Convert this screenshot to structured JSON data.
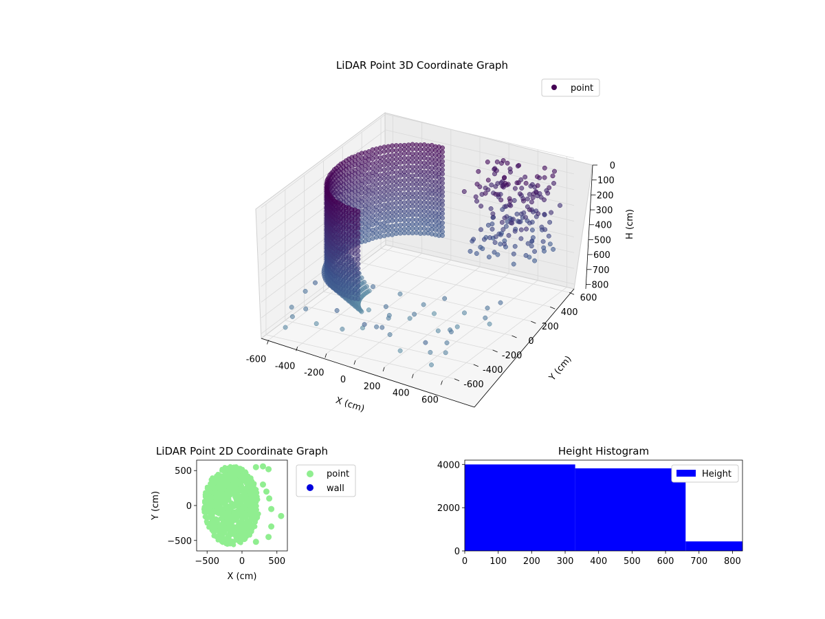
{
  "chart_data": [
    {
      "type": "scatter",
      "projection": "3d",
      "title": "LiDAR Point 3D Coordinate Graph",
      "xlabel": "X (cm)",
      "ylabel": "Y (cm)",
      "zlabel": "H (cm)",
      "xlim": [
        -650,
        650
      ],
      "ylim": [
        -650,
        650
      ],
      "zlim": [
        0,
        830
      ],
      "z_inverted": true,
      "x_ticks": [
        -600,
        -400,
        -200,
        0,
        200,
        400,
        600
      ],
      "y_ticks": [
        -600,
        -400,
        -200,
        0,
        200,
        400,
        600
      ],
      "z_ticks": [
        0,
        100,
        200,
        300,
        400,
        500,
        600,
        700,
        800
      ],
      "colormap": "viridis-like",
      "legend": {
        "placement": "top-right",
        "entries": [
          {
            "name": "point",
            "color": "#440154"
          }
        ]
      },
      "grid": true,
      "series": [
        {
          "name": "point",
          "description_of_shape": "dense cylindrical wall points on the left half plus scattered objects toward positive X",
          "points_sampled": "approximate"
        }
      ]
    },
    {
      "type": "scatter",
      "title": "LiDAR Point 2D Coordinate Graph",
      "xlabel": "X (cm)",
      "ylabel": "Y (cm)",
      "xlim": [
        -650,
        650
      ],
      "ylim": [
        -650,
        650
      ],
      "x_ticks": [
        -500,
        0,
        500
      ],
      "y_ticks": [
        -500,
        0,
        500
      ],
      "legend": {
        "placement": "right-outside",
        "entries": [
          {
            "name": "point",
            "color": "#90ee90"
          },
          {
            "name": "wall",
            "color": "#0000dd"
          }
        ]
      },
      "series": [
        {
          "name": "point",
          "color": "#90ee90",
          "shape": "filled disc, radius ~420 centered near (-150, 0), with bumps up to x≈560"
        },
        {
          "name": "wall",
          "color": "#0000dd",
          "values": []
        }
      ]
    },
    {
      "type": "bar",
      "subtype": "histogram",
      "title": "Height Histogram",
      "xlim": [
        0,
        830
      ],
      "ylim": [
        0,
        4200
      ],
      "x_ticks": [
        0,
        100,
        200,
        300,
        400,
        500,
        600,
        700,
        800
      ],
      "y_ticks": [
        0,
        2000,
        4000
      ],
      "legend": {
        "placement": "top-right",
        "entries": [
          {
            "name": "Height",
            "color": "#0000ff"
          }
        ]
      },
      "bins": [
        {
          "x0": 0,
          "x1": 330,
          "count": 4000
        },
        {
          "x0": 330,
          "x1": 660,
          "count": 3820
        },
        {
          "x0": 660,
          "x1": 830,
          "count": 440
        }
      ],
      "color": "#0000ff"
    }
  ]
}
